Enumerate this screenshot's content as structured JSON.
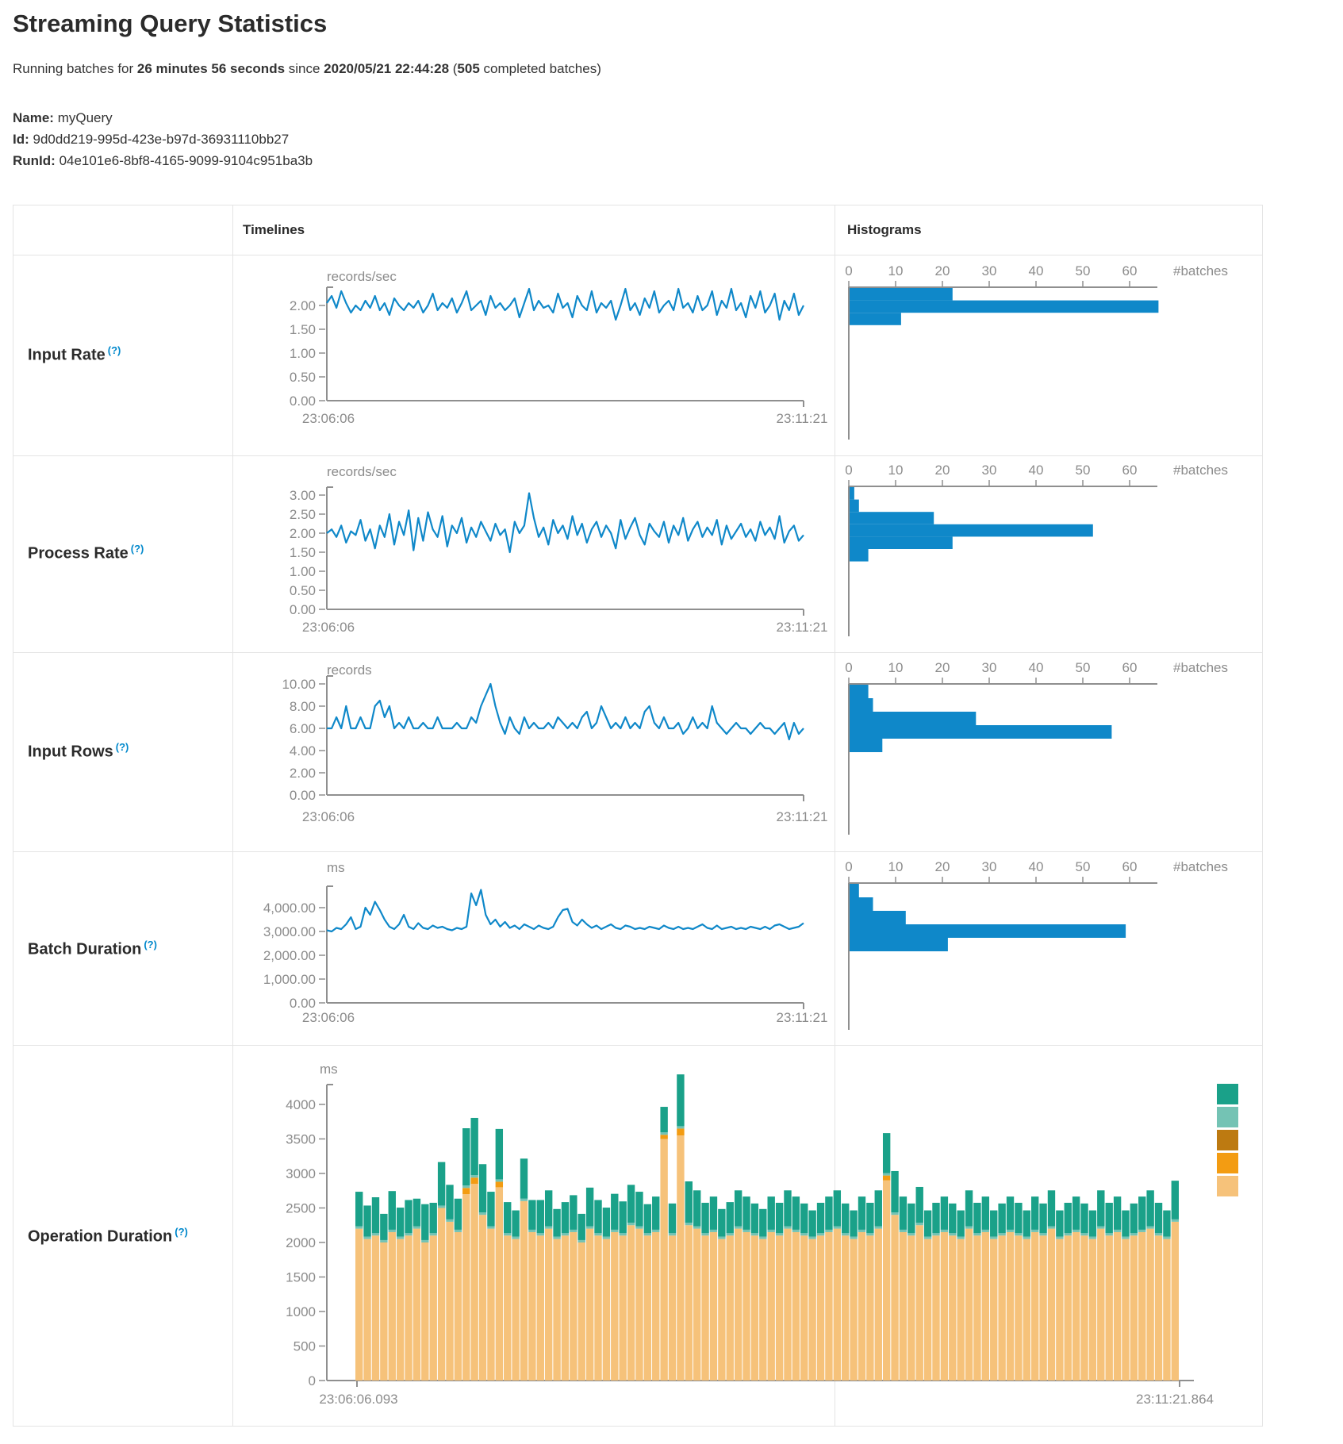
{
  "header": {
    "title": "Streaming Query Statistics",
    "running_prefix": "Running batches for ",
    "running_duration": "26 minutes 56 seconds",
    "since_text": " since ",
    "start_time": "2020/05/21 22:44:28",
    "paren_open": " (",
    "completed_batches": "505",
    "batches_suffix": " completed batches)",
    "name_label": "Name:",
    "name_value": "myQuery",
    "id_label": "Id:",
    "id_value": "9d0dd219-995d-423e-b97d-36931110bb27",
    "runid_label": "RunId:",
    "runid_value": "04e101e6-8bf8-4165-9099-9104c951ba3b"
  },
  "table": {
    "timelines_header": "Timelines",
    "histograms_header": "Histograms",
    "row_labels": [
      {
        "label": "Input Rate",
        "help": "(?)"
      },
      {
        "label": "Process Rate",
        "help": "(?)"
      },
      {
        "label": "Input Rows",
        "help": "(?)"
      },
      {
        "label": "Batch Duration",
        "help": "(?)"
      },
      {
        "label": "Operation Duration",
        "help": "(?)"
      }
    ]
  },
  "colors": {
    "line_blue": "#0f88c9",
    "hist_blue": "#0f88c9",
    "axis_gray": "#8c8c8c",
    "axis_line_gray": "#8f8f8f",
    "legend": [
      "#1aa189",
      "#74c3b4",
      "#bd7a11",
      "#f39c12",
      "#f6c27a"
    ]
  },
  "chart_data": [
    {
      "name": "input_rate_timeline",
      "type": "line",
      "title": "records/sec",
      "x_start_label": "23:06:06",
      "x_end_label": "23:11:21",
      "ylim": [
        0,
        2.38
      ],
      "yticks": [
        {
          "v": 2.0,
          "label": "2.00"
        },
        {
          "v": 1.5,
          "label": "1.50"
        },
        {
          "v": 1.0,
          "label": "1.00"
        },
        {
          "v": 0.5,
          "label": "0.50"
        },
        {
          "v": 0.0,
          "label": "0.00"
        }
      ],
      "values": [
        2.05,
        2.2,
        1.95,
        2.3,
        2.05,
        1.85,
        2.0,
        1.9,
        2.1,
        1.95,
        2.2,
        1.9,
        2.05,
        1.8,
        2.15,
        2.0,
        1.9,
        2.05,
        1.95,
        2.1,
        1.85,
        2.0,
        2.25,
        1.9,
        2.05,
        1.95,
        2.15,
        1.85,
        2.05,
        2.3,
        1.9,
        2.0,
        2.1,
        1.8,
        2.2,
        1.95,
        2.05,
        1.9,
        2.0,
        2.15,
        1.75,
        2.05,
        2.35,
        1.9,
        2.1,
        1.95,
        2.0,
        1.85,
        2.25,
        1.95,
        2.05,
        1.75,
        2.2,
        2.0,
        1.9,
        2.3,
        1.85,
        2.05,
        1.95,
        2.1,
        1.7,
        2.0,
        2.35,
        1.9,
        2.05,
        1.8,
        2.15,
        1.95,
        2.3,
        1.85,
        2.0,
        2.1,
        1.9,
        2.35,
        1.95,
        2.05,
        1.85,
        2.2,
        1.9,
        2.0,
        2.3,
        1.8,
        2.1,
        1.95,
        2.35,
        1.9,
        2.05,
        1.75,
        2.2,
        1.95,
        2.3,
        1.85,
        2.0,
        2.25,
        1.7,
        2.1,
        1.9,
        2.25,
        1.8,
        2.0
      ]
    },
    {
      "name": "input_rate_histogram",
      "type": "histogram",
      "unit": "#batches",
      "ticks": [
        0,
        10,
        20,
        30,
        40,
        50,
        60
      ],
      "values": [
        22,
        66,
        11
      ]
    },
    {
      "name": "process_rate_timeline",
      "type": "line",
      "title": "records/sec",
      "x_start_label": "23:06:06",
      "x_end_label": "23:11:21",
      "ylim": [
        0,
        3.2
      ],
      "yticks": [
        {
          "v": 3.0,
          "label": "3.00"
        },
        {
          "v": 2.5,
          "label": "2.50"
        },
        {
          "v": 2.0,
          "label": "2.00"
        },
        {
          "v": 1.5,
          "label": "1.50"
        },
        {
          "v": 1.0,
          "label": "1.00"
        },
        {
          "v": 0.5,
          "label": "0.50"
        },
        {
          "v": 0.0,
          "label": "0.00"
        }
      ],
      "values": [
        2.0,
        2.1,
        1.9,
        2.2,
        1.75,
        2.05,
        1.95,
        2.35,
        1.8,
        2.1,
        1.6,
        2.2,
        1.9,
        2.5,
        1.7,
        2.3,
        1.95,
        2.6,
        1.55,
        2.4,
        1.8,
        2.55,
        2.1,
        1.9,
        2.45,
        1.65,
        2.2,
        2.0,
        2.4,
        1.75,
        2.15,
        1.9,
        2.3,
        2.05,
        1.8,
        2.25,
        1.95,
        2.1,
        1.5,
        2.3,
        2.0,
        2.2,
        3.05,
        2.4,
        1.9,
        2.15,
        1.7,
        2.35,
        2.0,
        2.2,
        1.85,
        2.45,
        1.95,
        2.25,
        1.75,
        2.1,
        2.3,
        1.9,
        2.2,
        2.0,
        1.6,
        2.35,
        1.85,
        2.15,
        2.4,
        1.95,
        1.7,
        2.25,
        2.05,
        1.9,
        2.3,
        1.75,
        2.2,
        1.95,
        2.4,
        1.8,
        2.1,
        2.3,
        1.9,
        2.15,
        1.95,
        2.35,
        1.7,
        2.2,
        1.85,
        2.05,
        2.25,
        1.9,
        2.1,
        1.8,
        2.3,
        1.95,
        2.15,
        1.85,
        2.45,
        1.75,
        2.05,
        2.2,
        1.8,
        1.95
      ]
    },
    {
      "name": "process_rate_histogram",
      "type": "histogram",
      "unit": "#batches",
      "ticks": [
        0,
        10,
        20,
        30,
        40,
        50,
        60
      ],
      "values": [
        1,
        2,
        18,
        52,
        22,
        4
      ]
    },
    {
      "name": "input_rows_timeline",
      "type": "line",
      "title": "records",
      "x_start_label": "23:06:06",
      "x_end_label": "23:11:21",
      "ylim": [
        0,
        10.7
      ],
      "yticks": [
        {
          "v": 10,
          "label": "10.00"
        },
        {
          "v": 8,
          "label": "8.00"
        },
        {
          "v": 6,
          "label": "6.00"
        },
        {
          "v": 4,
          "label": "4.00"
        },
        {
          "v": 2,
          "label": "2.00"
        },
        {
          "v": 0,
          "label": "0.00"
        }
      ],
      "values": [
        6,
        6,
        7,
        6,
        8,
        6,
        6,
        7,
        6,
        6,
        8,
        8.5,
        7,
        8,
        6,
        6.5,
        6,
        7,
        6,
        6,
        6.5,
        6,
        6,
        7,
        6,
        6,
        6,
        6.5,
        6,
        6,
        7,
        6.5,
        8,
        9,
        10,
        8,
        6.5,
        5.5,
        7,
        6,
        5.5,
        7,
        6,
        6.5,
        6,
        6,
        6.5,
        6,
        7,
        6.5,
        6,
        6.5,
        6,
        7,
        7.5,
        6,
        6.5,
        8,
        7,
        6,
        6.5,
        6,
        7,
        6,
        6.5,
        6,
        7.5,
        8,
        6.5,
        6,
        7,
        6,
        6,
        6.5,
        5.5,
        6,
        7,
        6,
        6.5,
        6,
        8,
        6.5,
        6,
        5.5,
        6,
        6.5,
        6,
        6,
        5.5,
        6,
        6.5,
        6,
        6,
        5.5,
        6,
        6.5,
        5,
        6.5,
        5.5,
        6
      ]
    },
    {
      "name": "input_rows_histogram",
      "type": "histogram",
      "unit": "#batches",
      "ticks": [
        0,
        10,
        20,
        30,
        40,
        50,
        60
      ],
      "values": [
        4,
        5,
        27,
        56,
        7
      ]
    },
    {
      "name": "batch_duration_timeline",
      "type": "line",
      "title": "ms",
      "x_start_label": "23:06:06",
      "x_end_label": "23:11:21",
      "ylim": [
        0,
        4800
      ],
      "yticks": [
        {
          "v": 4000,
          "label": "4,000.00"
        },
        {
          "v": 3000,
          "label": "3,000.00"
        },
        {
          "v": 2000,
          "label": "2,000.00"
        },
        {
          "v": 1000,
          "label": "1,000.00"
        },
        {
          "v": 0,
          "label": "0.00"
        }
      ],
      "values": [
        3050,
        3000,
        3150,
        3100,
        3300,
        3600,
        3100,
        3200,
        4000,
        3700,
        4250,
        3900,
        3500,
        3200,
        3100,
        3300,
        3700,
        3200,
        3100,
        3350,
        3150,
        3100,
        3250,
        3150,
        3200,
        3100,
        3050,
        3150,
        3100,
        3200,
        4600,
        4100,
        4750,
        3700,
        3300,
        3500,
        3200,
        3400,
        3150,
        3250,
        3100,
        3300,
        3200,
        3100,
        3250,
        3150,
        3100,
        3200,
        3600,
        3900,
        3950,
        3400,
        3250,
        3500,
        3300,
        3150,
        3250,
        3100,
        3200,
        3300,
        3150,
        3100,
        3250,
        3200,
        3100,
        3150,
        3100,
        3200,
        3150,
        3100,
        3250,
        3150,
        3100,
        3200,
        3100,
        3150,
        3100,
        3200,
        3300,
        3150,
        3100,
        3250,
        3100,
        3150,
        3200,
        3100,
        3150,
        3100,
        3200,
        3150,
        3100,
        3200,
        3100,
        3250,
        3300,
        3200,
        3100,
        3150,
        3200,
        3350
      ]
    },
    {
      "name": "batch_duration_histogram",
      "type": "histogram",
      "unit": "#batches",
      "ticks": [
        0,
        10,
        20,
        30,
        40,
        50,
        60
      ],
      "values": [
        2,
        5,
        12,
        59,
        21
      ]
    },
    {
      "name": "operation_duration_stacked",
      "type": "bar",
      "title": "ms",
      "x_start_label": "23:06:06.093",
      "x_end_label": "23:11:21.864",
      "ylim": [
        0,
        4300
      ],
      "yticks": [
        {
          "v": 4000,
          "label": "4000"
        },
        {
          "v": 3500,
          "label": "3500"
        },
        {
          "v": 3000,
          "label": "3000"
        },
        {
          "v": 2500,
          "label": "2500"
        },
        {
          "v": 2000,
          "label": "2000"
        },
        {
          "v": 1500,
          "label": "1500"
        },
        {
          "v": 1000,
          "label": "1000"
        },
        {
          "v": 500,
          "label": "500"
        },
        {
          "v": 0,
          "label": "0"
        }
      ],
      "series": [
        {
          "name": "stack-base",
          "color": "#f6c27a",
          "values": [
            2200,
            2050,
            2100,
            2000,
            2150,
            2050,
            2100,
            2200,
            2000,
            2100,
            2500,
            2300,
            2150,
            2700,
            2850,
            2400,
            2200,
            2800,
            2100,
            2050,
            2600,
            2150,
            2100,
            2200,
            2050,
            2100,
            2150,
            2000,
            2200,
            2100,
            2050,
            2150,
            2100,
            2250,
            2200,
            2100,
            2150,
            3500,
            2100,
            3550,
            2250,
            2200,
            2100,
            2150,
            2050,
            2100,
            2200,
            2150,
            2100,
            2050,
            2150,
            2100,
            2200,
            2150,
            2100,
            2050,
            2100,
            2150,
            2200,
            2100,
            2050,
            2150,
            2100,
            2200,
            2900,
            2400,
            2150,
            2100,
            2250,
            2050,
            2100,
            2150,
            2100,
            2050,
            2200,
            2100,
            2150,
            2050,
            2100,
            2150,
            2100,
            2050,
            2150,
            2100,
            2200,
            2050,
            2100,
            2150,
            2100,
            2050,
            2200,
            2100,
            2150,
            2050,
            2100,
            2150,
            2200,
            2100,
            2050,
            2300
          ]
        },
        {
          "name": "stack-mid",
          "color": "#f39c12",
          "values": [
            0,
            0,
            0,
            0,
            0,
            0,
            0,
            0,
            0,
            0,
            0,
            0,
            0,
            90,
            90,
            0,
            0,
            80,
            0,
            0,
            0,
            0,
            0,
            0,
            0,
            0,
            0,
            0,
            0,
            0,
            0,
            0,
            0,
            0,
            0,
            0,
            0,
            60,
            0,
            100,
            0,
            0,
            0,
            0,
            0,
            0,
            0,
            0,
            0,
            0,
            0,
            0,
            0,
            0,
            0,
            0,
            0,
            0,
            0,
            0,
            0,
            0,
            0,
            0,
            70,
            0,
            0,
            0,
            0,
            0,
            0,
            0,
            0,
            0,
            0,
            0,
            0,
            0,
            0,
            0,
            0,
            0,
            0,
            0,
            0,
            0,
            0,
            0,
            0,
            0,
            0,
            0,
            0,
            0,
            0,
            0,
            0,
            0,
            0,
            0
          ]
        },
        {
          "name": "stack-sliver",
          "color": "#74c3b4",
          "constant": 35
        },
        {
          "name": "stack-top",
          "color": "#1aa189",
          "values": [
            500,
            450,
            520,
            380,
            560,
            420,
            480,
            400,
            520,
            440,
            630,
            500,
            450,
            830,
            830,
            700,
            500,
            730,
            450,
            380,
            580,
            430,
            480,
            520,
            400,
            450,
            500,
            380,
            560,
            480,
            420,
            520,
            460,
            550,
            500,
            420,
            480,
            370,
            430,
            750,
            600,
            520,
            440,
            480,
            400,
            450,
            520,
            480,
            430,
            400,
            480,
            440,
            520,
            480,
            430,
            380,
            440,
            480,
            520,
            430,
            380,
            480,
            440,
            520,
            580,
            600,
            480,
            430,
            520,
            380,
            440,
            480,
            430,
            380,
            520,
            440,
            480,
            380,
            430,
            480,
            440,
            380,
            480,
            430,
            520,
            380,
            440,
            480,
            430,
            380,
            520,
            440,
            480,
            380,
            430,
            480,
            520,
            440,
            380,
            560
          ]
        }
      ]
    }
  ]
}
